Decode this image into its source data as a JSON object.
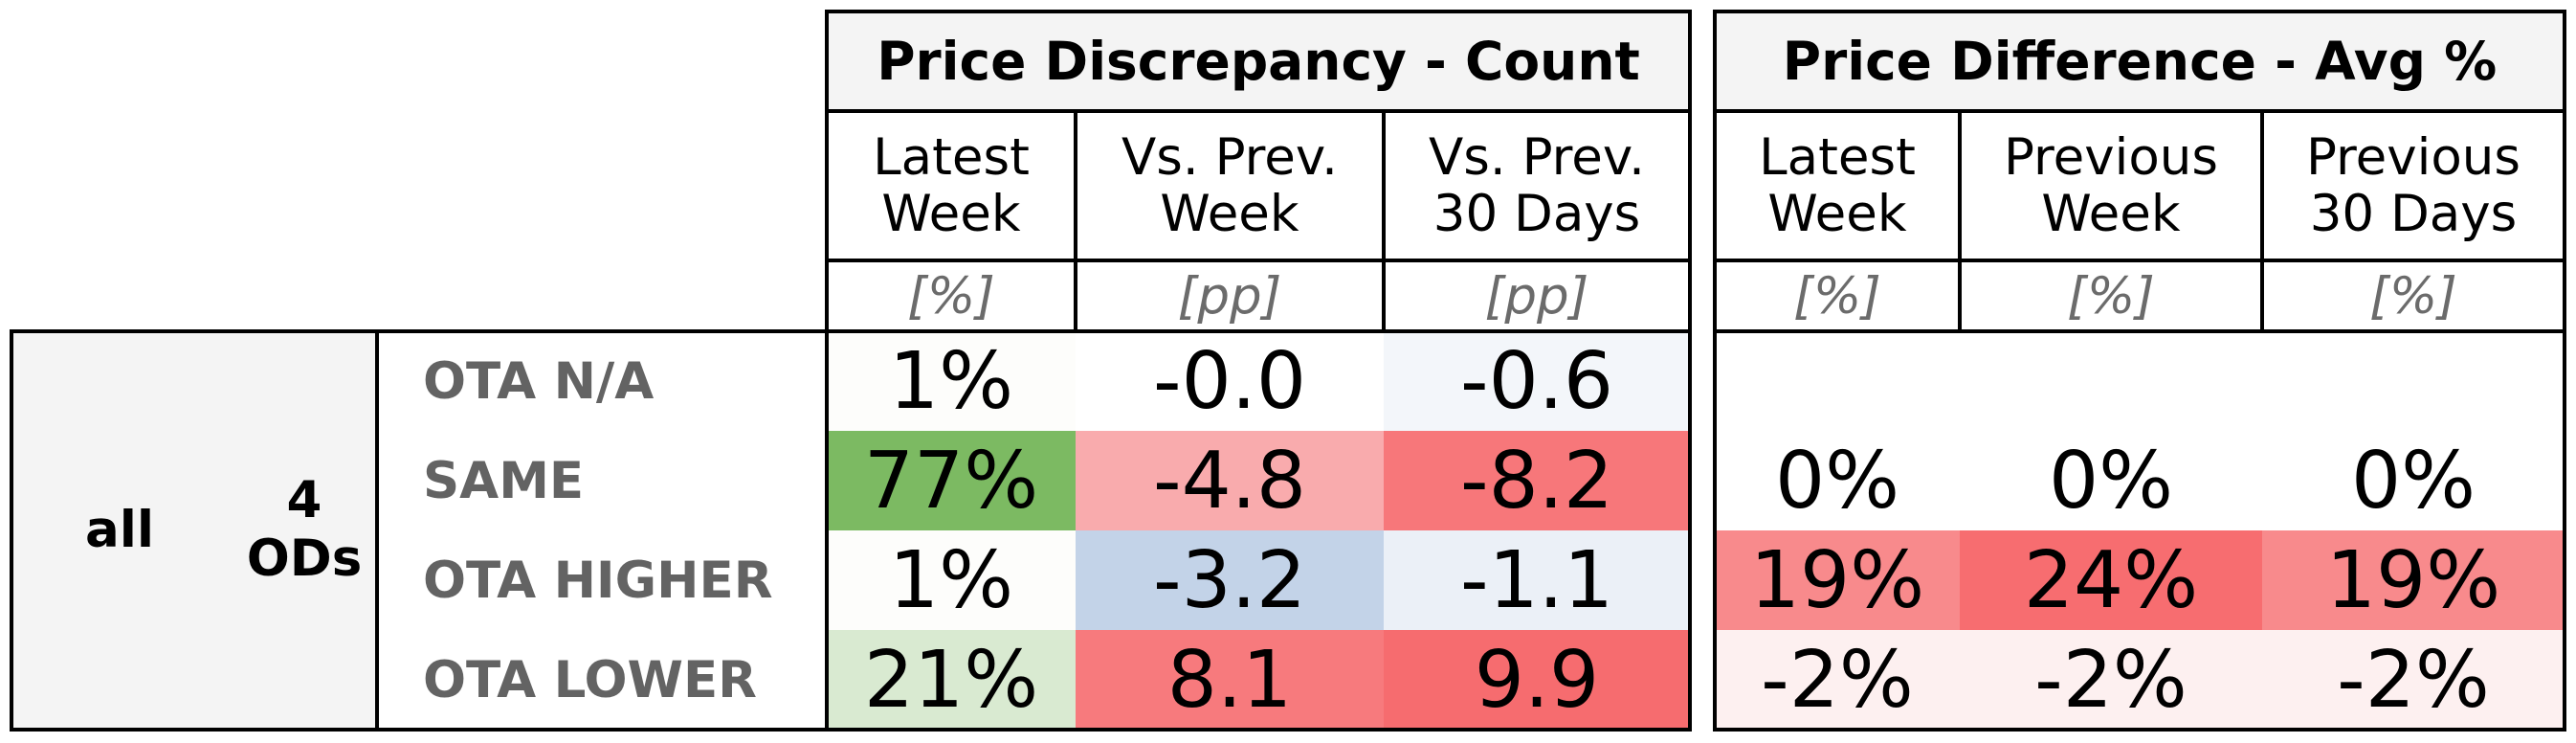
{
  "chart_data": {
    "type": "table",
    "segment": {
      "label": "all",
      "count_label": "4\nODs"
    },
    "row_labels": [
      "OTA N/A",
      "SAME",
      "OTA HIGHER",
      "OTA LOWER"
    ],
    "panels": [
      {
        "title": "Price Discrepancy - Count",
        "columns": [
          {
            "header": "Latest\nWeek",
            "unit": "[%]",
            "cells": [
              {
                "text": "1%",
                "bg": "#fdfdfb"
              },
              {
                "text": "77%",
                "bg": "#7cba62"
              },
              {
                "text": "1%",
                "bg": "#fdfdfb"
              },
              {
                "text": "21%",
                "bg": "#d9ead1"
              }
            ]
          },
          {
            "header": "Vs. Prev.\nWeek",
            "unit": "[pp]",
            "cells": [
              {
                "text": "-0.0",
                "bg": "#ffffff"
              },
              {
                "text": "-4.8",
                "bg": "#f9abad"
              },
              {
                "text": "-3.2",
                "bg": "#c3d3e8"
              },
              {
                "text": "8.1",
                "bg": "#f77a7d"
              }
            ]
          },
          {
            "header": "Vs. Prev.\n30 Days",
            "unit": "[pp]",
            "cells": [
              {
                "text": "-0.6",
                "bg": "#f3f6fa"
              },
              {
                "text": "-8.2",
                "bg": "#f7777a"
              },
              {
                "text": "-1.1",
                "bg": "#ebf0f7"
              },
              {
                "text": "9.9",
                "bg": "#f66c6f"
              }
            ]
          }
        ]
      },
      {
        "title": "Price Difference - Avg %",
        "columns": [
          {
            "header": "Latest\nWeek",
            "unit": "[%]",
            "cells": [
              {
                "text": "",
                "bg": "#ffffff"
              },
              {
                "text": "0%",
                "bg": "#ffffff"
              },
              {
                "text": "19%",
                "bg": "#f88a8c"
              },
              {
                "text": "-2%",
                "bg": "#fdf0f0"
              }
            ]
          },
          {
            "header": "Previous\nWeek",
            "unit": "[%]",
            "cells": [
              {
                "text": "",
                "bg": "#ffffff"
              },
              {
                "text": "0%",
                "bg": "#ffffff"
              },
              {
                "text": "24%",
                "bg": "#f76d70"
              },
              {
                "text": "-2%",
                "bg": "#fdf0f0"
              }
            ]
          },
          {
            "header": "Previous\n30 Days",
            "unit": "[%]",
            "cells": [
              {
                "text": "",
                "bg": "#ffffff"
              },
              {
                "text": "0%",
                "bg": "#ffffff"
              },
              {
                "text": "19%",
                "bg": "#f88a8c"
              },
              {
                "text": "-2%",
                "bg": "#fdf0f0"
              }
            ]
          }
        ]
      }
    ]
  }
}
